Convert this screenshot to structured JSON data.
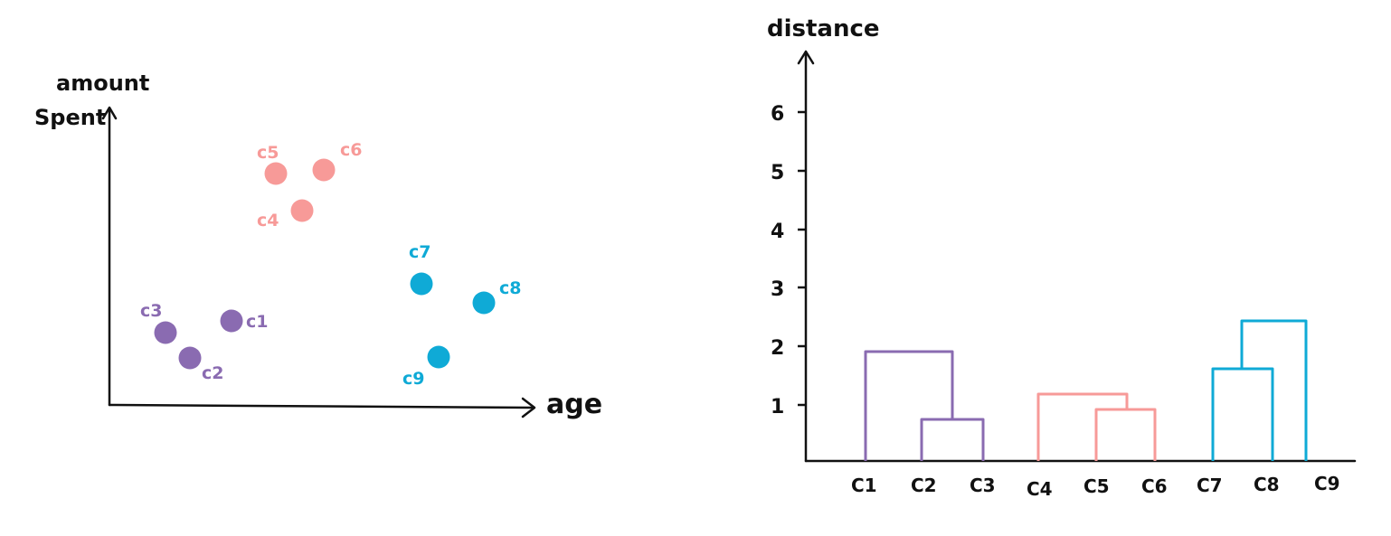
{
  "colors": {
    "purple": "#8a6bb1",
    "pink": "#f79a98",
    "blue": "#0faad6",
    "ink": "#111111"
  },
  "scatter": {
    "y_axis_label_line1": "amount",
    "y_axis_label_line2": "Spent",
    "x_axis_label": "age",
    "points": [
      {
        "label": "c3",
        "cluster": "purple"
      },
      {
        "label": "c2",
        "cluster": "purple"
      },
      {
        "label": "c1",
        "cluster": "purple"
      },
      {
        "label": "c5",
        "cluster": "pink"
      },
      {
        "label": "c6",
        "cluster": "pink"
      },
      {
        "label": "c4",
        "cluster": "pink"
      },
      {
        "label": "c7",
        "cluster": "blue"
      },
      {
        "label": "c8",
        "cluster": "blue"
      },
      {
        "label": "c9",
        "cluster": "blue"
      }
    ]
  },
  "dendrogram": {
    "y_axis_label": "distance",
    "y_ticks": [
      "1",
      "2",
      "3",
      "4",
      "5",
      "6"
    ],
    "leaves": [
      "C1",
      "C2",
      "C3",
      "C4",
      "C5",
      "C6",
      "C7",
      "C8",
      "C9"
    ],
    "merges": [
      {
        "cluster": "purple",
        "left": "C2",
        "right": "C3",
        "distance": 0.7
      },
      {
        "cluster": "purple",
        "left": "C1",
        "right": "C2+C3",
        "distance": 1.9
      },
      {
        "cluster": "pink",
        "left": "C5",
        "right": "C6",
        "distance": 0.85
      },
      {
        "cluster": "pink",
        "left": "C4",
        "right": "C5+C6",
        "distance": 1.1
      },
      {
        "cluster": "blue",
        "left": "C7",
        "right": "C8",
        "distance": 1.55
      },
      {
        "cluster": "blue",
        "left": "C7+C8",
        "right": "C9",
        "distance": 2.4
      }
    ]
  }
}
